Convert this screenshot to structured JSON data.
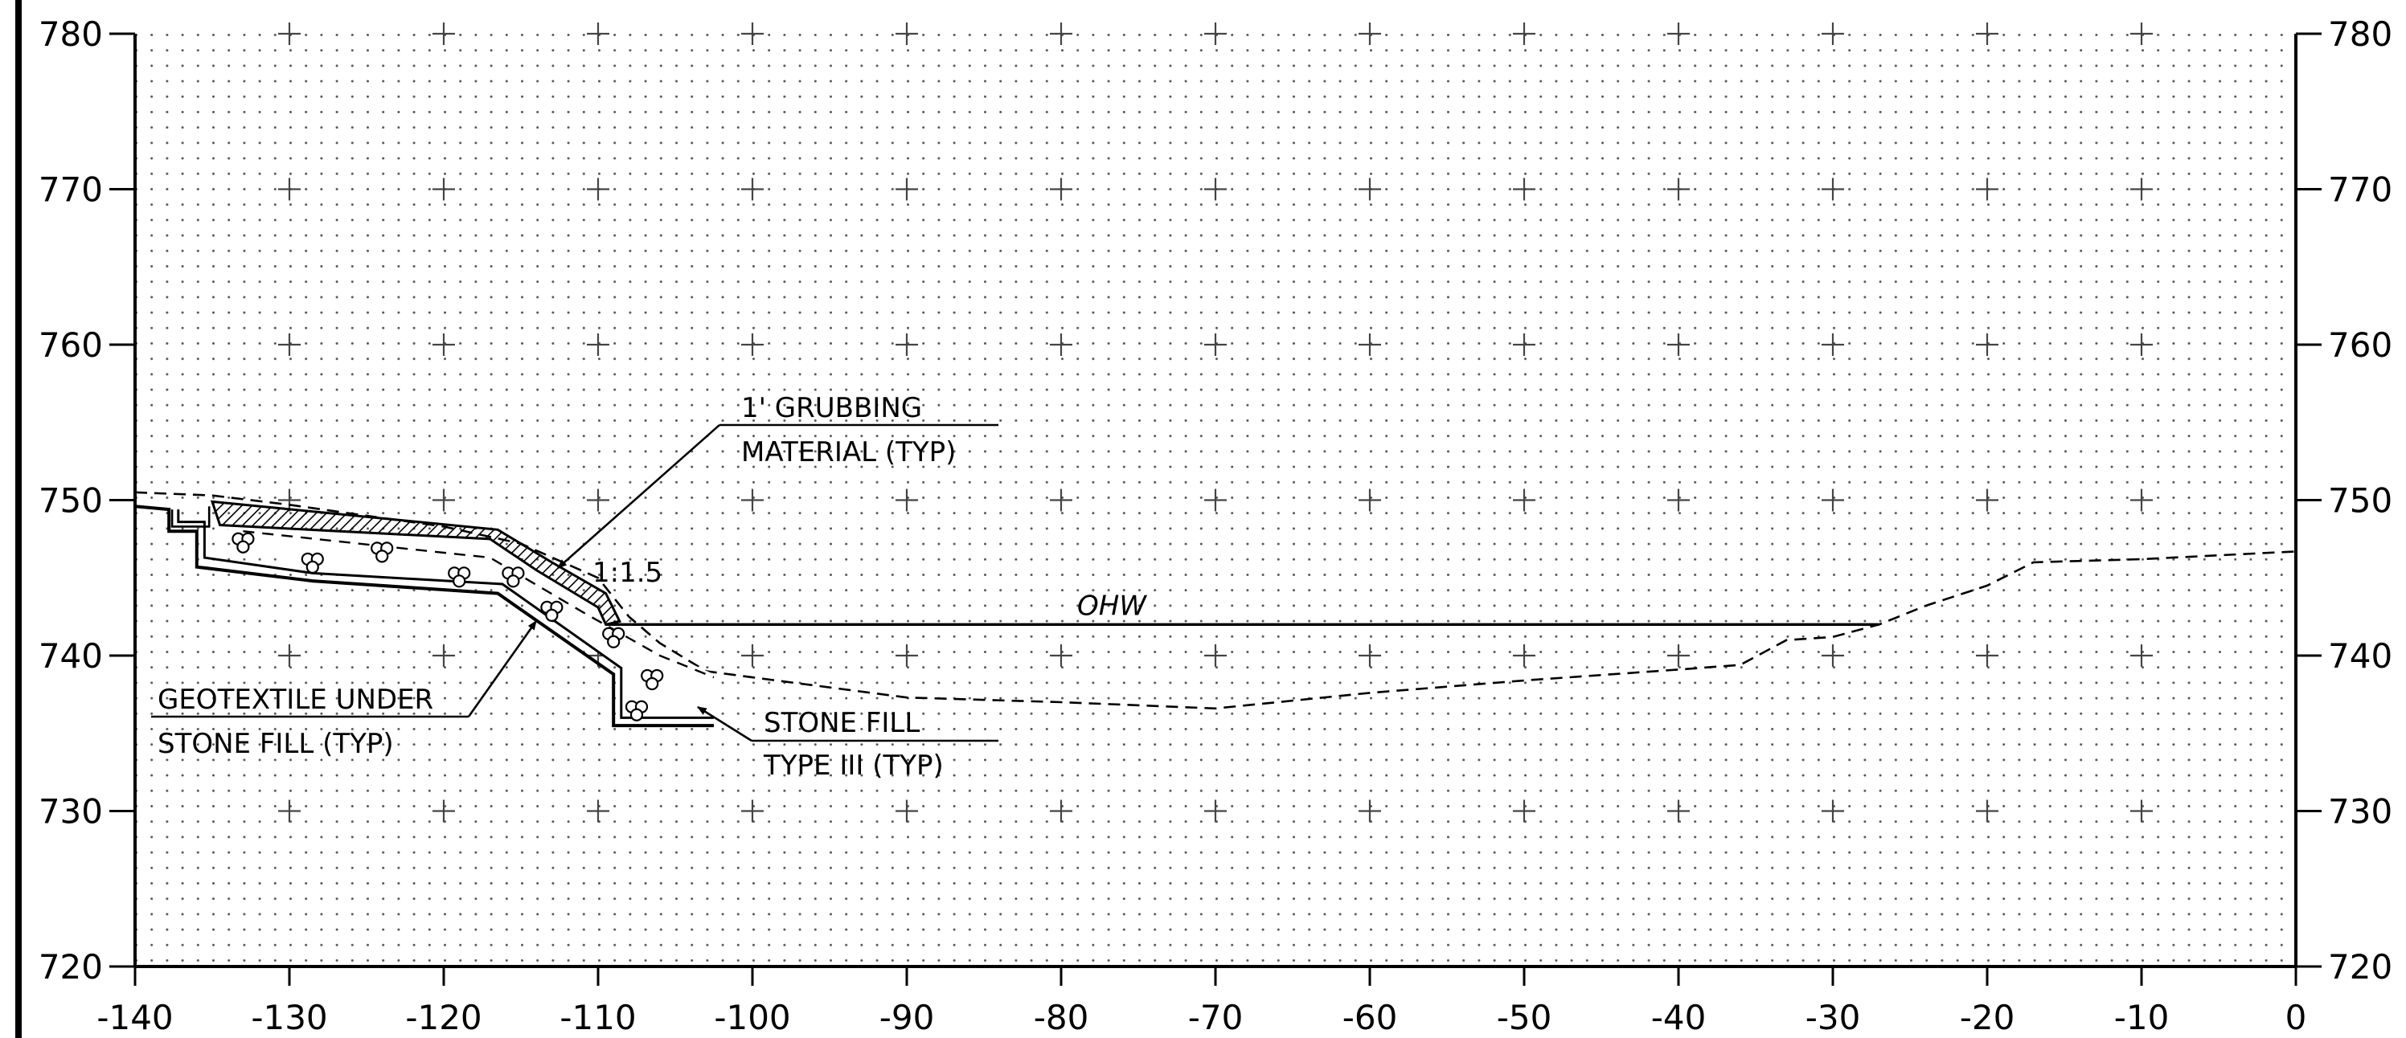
{
  "section": {
    "x_axis": {
      "min": -140,
      "max": 0,
      "step": 10,
      "tick_labels": [
        "-140",
        "-130",
        "-120",
        "-110",
        "-100",
        "-90",
        "-80",
        "-70",
        "-60",
        "-50",
        "-40",
        "-30",
        "-20",
        "-10",
        "0"
      ]
    },
    "y_axis": {
      "min": 720,
      "max": 780,
      "step": 10,
      "tick_labels": [
        "720",
        "730",
        "740",
        "750",
        "760",
        "770",
        "780"
      ]
    },
    "existing_ground": [
      [
        -140,
        750.5
      ],
      [
        -135,
        750.3
      ],
      [
        -130,
        749.7
      ],
      [
        -125,
        749
      ],
      [
        -120,
        748.3
      ],
      [
        -115,
        747.2
      ],
      [
        -110,
        745
      ],
      [
        -108,
        742.5
      ],
      [
        -106,
        740.8
      ],
      [
        -103,
        739
      ],
      [
        -100,
        738.6
      ],
      [
        -90,
        737.3
      ],
      [
        -80,
        737
      ],
      [
        -70,
        736.6
      ],
      [
        -60,
        737.6
      ],
      [
        -50,
        738.4
      ],
      [
        -40,
        739.1
      ],
      [
        -36,
        739.4
      ],
      [
        -33,
        741
      ],
      [
        -30,
        741.2
      ],
      [
        -27,
        742
      ],
      [
        -24,
        743.2
      ],
      [
        -20,
        744.5
      ],
      [
        -17,
        746
      ],
      [
        -10,
        746.2
      ],
      [
        0,
        746.7
      ]
    ],
    "grubbing_top": [
      [
        -135,
        749.9
      ],
      [
        -116.5,
        748.1
      ],
      [
        -113,
        746
      ],
      [
        -109.5,
        744
      ],
      [
        -108.6,
        742.2
      ]
    ],
    "grubbing_bottom": [
      [
        -134.5,
        748.4
      ],
      [
        -117,
        747.5
      ],
      [
        -114,
        745.5
      ],
      [
        -110,
        743.1
      ],
      [
        -109.5,
        742
      ]
    ],
    "stone_outer": [
      [
        -140,
        749.6
      ],
      [
        -137.8,
        749.4
      ],
      [
        -137.8,
        748
      ],
      [
        -136,
        748
      ],
      [
        -136,
        745.7
      ],
      [
        -128.5,
        744.8
      ],
      [
        -116.5,
        744
      ],
      [
        -109,
        738.8
      ],
      [
        -109,
        735.5
      ],
      [
        -102.5,
        735.5
      ]
    ],
    "stone_inner": [
      [
        -137.2,
        749.4
      ],
      [
        -137.2,
        748.6
      ],
      [
        -135.5,
        748.6
      ],
      [
        -135.5,
        746.3
      ],
      [
        -128.5,
        745.3
      ],
      [
        -116.2,
        744.6
      ],
      [
        -108.5,
        739.2
      ],
      [
        -108.5,
        736
      ],
      [
        -102.5,
        736
      ]
    ],
    "step_outline": [
      [
        -137.6,
        749.4
      ],
      [
        -137.6,
        748.3
      ],
      [
        -135.2,
        748.3
      ],
      [
        -135.2,
        749.6
      ]
    ],
    "rocks": [
      [
        -133,
        747.3
      ],
      [
        -128.5,
        746
      ],
      [
        -124,
        746.7
      ],
      [
        -119,
        745.1
      ],
      [
        -115.5,
        745.1
      ],
      [
        -113,
        742.9
      ],
      [
        -109,
        741.2
      ],
      [
        -106.5,
        738.5
      ],
      [
        -107.5,
        736.5
      ]
    ],
    "ohw_level": 742,
    "ohw_start": -109.5,
    "ohw_end": -27,
    "ohw_label": "OHW",
    "slope_label": "1:1.5",
    "callouts": {
      "grubbing": {
        "line1": "1' GRUBBING",
        "line2": "MATERIAL (TYP)"
      },
      "geotextile": {
        "line1": "GEOTEXTILE UNDER",
        "line2": "STONE FILL (TYP)"
      },
      "stone": {
        "line1": "STONE FILL",
        "line2": "TYPE III (TYP)"
      }
    }
  }
}
